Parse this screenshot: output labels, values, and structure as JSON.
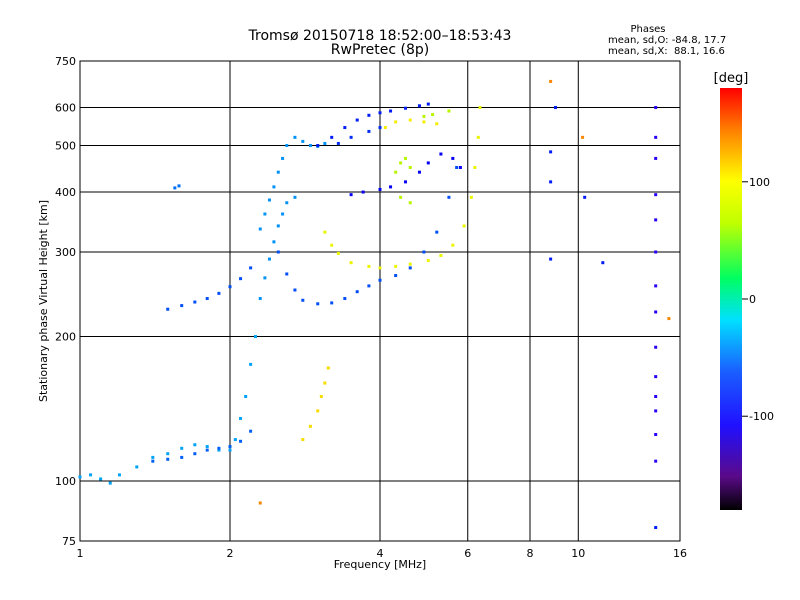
{
  "chart_data": {
    "type": "scatter",
    "title": "Tromsø 20150718 18:52:00–18:53:43",
    "subtitle": "RwPretec (8p)",
    "xlabel": "Frequency [MHz]",
    "ylabel": "Stationary phase Virtual Height [km]",
    "x_scale": "log",
    "y_scale": "log",
    "xlim": [
      1,
      16
    ],
    "ylim": [
      75,
      750
    ],
    "xticks": [
      1,
      2,
      4,
      6,
      8,
      10,
      16
    ],
    "yticks": [
      75,
      100,
      200,
      300,
      400,
      500,
      600,
      750
    ],
    "grid": true,
    "stats": {
      "heading": "Phases",
      "line_o": "mean, sd,O: -84.8, 17.7",
      "line_x": "mean, sd,X:  88.1, 16.6"
    },
    "colorbar": {
      "label": "[deg]",
      "range": [
        -180,
        180
      ],
      "ticks": [
        100,
        0,
        -100
      ],
      "colormap": "rainbow (black–purple–blue–cyan–green–yellow–red)"
    },
    "series": [
      {
        "phase": -60,
        "points": [
          [
            1.0,
            102
          ],
          [
            1.05,
            103
          ],
          [
            1.1,
            101
          ],
          [
            1.15,
            99
          ],
          [
            1.2,
            103
          ],
          [
            1.3,
            107
          ],
          [
            1.4,
            112
          ],
          [
            1.5,
            114
          ],
          [
            1.6,
            117
          ],
          [
            1.7,
            119
          ],
          [
            1.8,
            118
          ],
          [
            1.9,
            116
          ],
          [
            2.0,
            116
          ],
          [
            2.05,
            122
          ],
          [
            2.1,
            135
          ],
          [
            2.15,
            150
          ],
          [
            2.2,
            175
          ],
          [
            2.25,
            200
          ]
        ]
      },
      {
        "phase": -80,
        "points": [
          [
            1.4,
            110
          ],
          [
            1.5,
            111
          ],
          [
            1.6,
            112
          ],
          [
            1.7,
            114
          ],
          [
            1.8,
            116
          ],
          [
            1.9,
            117
          ],
          [
            2.0,
            118
          ],
          [
            2.1,
            121
          ],
          [
            2.2,
            127
          ]
        ]
      },
      {
        "phase": -85,
        "points": [
          [
            1.5,
            228
          ],
          [
            1.6,
            232
          ],
          [
            1.7,
            236
          ],
          [
            1.8,
            240
          ],
          [
            1.9,
            246
          ],
          [
            2.0,
            254
          ],
          [
            2.1,
            264
          ],
          [
            2.2,
            278
          ]
        ]
      },
      {
        "phase": -75,
        "points": [
          [
            1.55,
            408
          ],
          [
            1.58,
            412
          ]
        ]
      },
      {
        "phase": -65,
        "points": [
          [
            2.3,
            335
          ],
          [
            2.35,
            360
          ],
          [
            2.4,
            385
          ],
          [
            2.45,
            410
          ],
          [
            2.5,
            440
          ],
          [
            2.55,
            470
          ],
          [
            2.6,
            500
          ],
          [
            2.7,
            520
          ],
          [
            2.8,
            510
          ],
          [
            2.9,
            500
          ],
          [
            3.0,
            498
          ],
          [
            3.1,
            505
          ]
        ]
      },
      {
        "phase": -65,
        "points": [
          [
            2.3,
            240
          ],
          [
            2.35,
            265
          ],
          [
            2.4,
            290
          ],
          [
            2.45,
            315
          ],
          [
            2.5,
            340
          ],
          [
            2.55,
            360
          ],
          [
            2.6,
            380
          ],
          [
            2.7,
            390
          ]
        ]
      },
      {
        "phase": -85,
        "points": [
          [
            2.5,
            300
          ],
          [
            2.6,
            270
          ],
          [
            2.7,
            250
          ],
          [
            2.8,
            238
          ],
          [
            3.0,
            234
          ],
          [
            3.2,
            235
          ],
          [
            3.4,
            240
          ],
          [
            3.6,
            248
          ],
          [
            3.8,
            255
          ],
          [
            4.0,
            262
          ],
          [
            4.3,
            268
          ],
          [
            4.6,
            278
          ],
          [
            4.9,
            300
          ],
          [
            5.2,
            330
          ],
          [
            5.5,
            390
          ],
          [
            5.7,
            450
          ]
        ]
      },
      {
        "phase": -100,
        "points": [
          [
            3.0,
            500
          ],
          [
            3.2,
            520
          ],
          [
            3.4,
            545
          ],
          [
            3.6,
            565
          ],
          [
            3.8,
            578
          ],
          [
            4.0,
            585
          ],
          [
            4.2,
            590
          ],
          [
            4.5,
            598
          ],
          [
            4.8,
            605
          ],
          [
            5.0,
            610
          ]
        ]
      },
      {
        "phase": -95,
        "points": [
          [
            3.3,
            505
          ],
          [
            3.5,
            520
          ],
          [
            3.8,
            535
          ],
          [
            4.0,
            545
          ]
        ]
      },
      {
        "phase": -110,
        "points": [
          [
            3.5,
            395
          ],
          [
            3.7,
            400
          ],
          [
            4.0,
            405
          ],
          [
            4.2,
            410
          ],
          [
            4.5,
            420
          ],
          [
            4.8,
            440
          ],
          [
            5.0,
            460
          ],
          [
            5.3,
            480
          ],
          [
            5.6,
            470
          ],
          [
            5.8,
            450
          ]
        ]
      },
      {
        "phase": 105,
        "points": [
          [
            3.1,
            330
          ],
          [
            3.2,
            310
          ],
          [
            3.3,
            298
          ],
          [
            3.5,
            285
          ],
          [
            3.8,
            280
          ],
          [
            4.0,
            278
          ],
          [
            4.3,
            280
          ],
          [
            4.6,
            283
          ],
          [
            5.0,
            288
          ],
          [
            5.3,
            295
          ],
          [
            5.6,
            310
          ],
          [
            5.9,
            340
          ],
          [
            6.1,
            390
          ],
          [
            6.2,
            450
          ],
          [
            6.3,
            520
          ],
          [
            6.35,
            600
          ]
        ]
      },
      {
        "phase": 115,
        "points": [
          [
            2.8,
            122
          ],
          [
            2.9,
            130
          ],
          [
            3.0,
            140
          ],
          [
            3.05,
            150
          ],
          [
            3.1,
            160
          ],
          [
            3.15,
            172
          ]
        ]
      },
      {
        "phase": 90,
        "points": [
          [
            4.3,
            440
          ],
          [
            4.4,
            460
          ],
          [
            4.5,
            470
          ],
          [
            4.6,
            450
          ],
          [
            4.4,
            390
          ],
          [
            4.6,
            380
          ],
          [
            4.9,
            575
          ],
          [
            5.1,
            580
          ],
          [
            5.5,
            590
          ]
        ]
      },
      {
        "phase": 110,
        "points": [
          [
            4.1,
            545
          ],
          [
            4.3,
            560
          ],
          [
            4.6,
            565
          ],
          [
            4.9,
            560
          ],
          [
            5.2,
            555
          ]
        ]
      },
      {
        "phase": -120,
        "points": [
          [
            14.3,
            600
          ],
          [
            14.3,
            520
          ],
          [
            14.3,
            470
          ],
          [
            14.3,
            395
          ],
          [
            14.3,
            350
          ],
          [
            14.3,
            300
          ],
          [
            14.3,
            255
          ],
          [
            14.3,
            225
          ],
          [
            14.3,
            190
          ],
          [
            14.3,
            165
          ],
          [
            14.3,
            150
          ],
          [
            14.3,
            140
          ],
          [
            14.3,
            125
          ],
          [
            14.3,
            110
          ]
        ]
      },
      {
        "phase": -100,
        "points": [
          [
            8.8,
            485
          ],
          [
            8.8,
            420
          ],
          [
            8.8,
            290
          ],
          [
            9.0,
            600
          ],
          [
            10.3,
            390
          ],
          [
            11.2,
            285
          ],
          [
            14.3,
            80
          ]
        ]
      },
      {
        "phase": 140,
        "points": [
          [
            8.8,
            680
          ],
          [
            10.2,
            520
          ],
          [
            15.2,
            218
          ],
          [
            2.3,
            90
          ]
        ]
      }
    ]
  }
}
